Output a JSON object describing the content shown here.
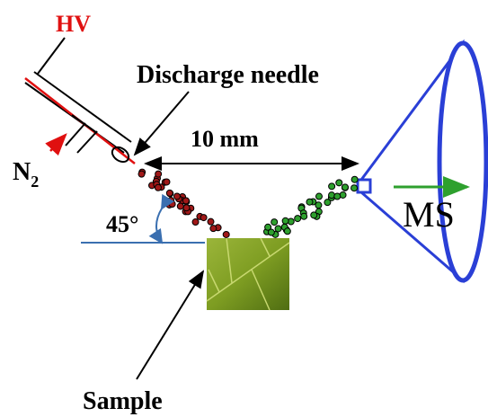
{
  "labels": {
    "hv": "HV",
    "needle": "Discharge needle",
    "distance": "10 mm",
    "gas": {
      "symbol": "N",
      "subscript": "2"
    },
    "angle": "45°",
    "ms": "MS",
    "sample": "Sample"
  }
}
